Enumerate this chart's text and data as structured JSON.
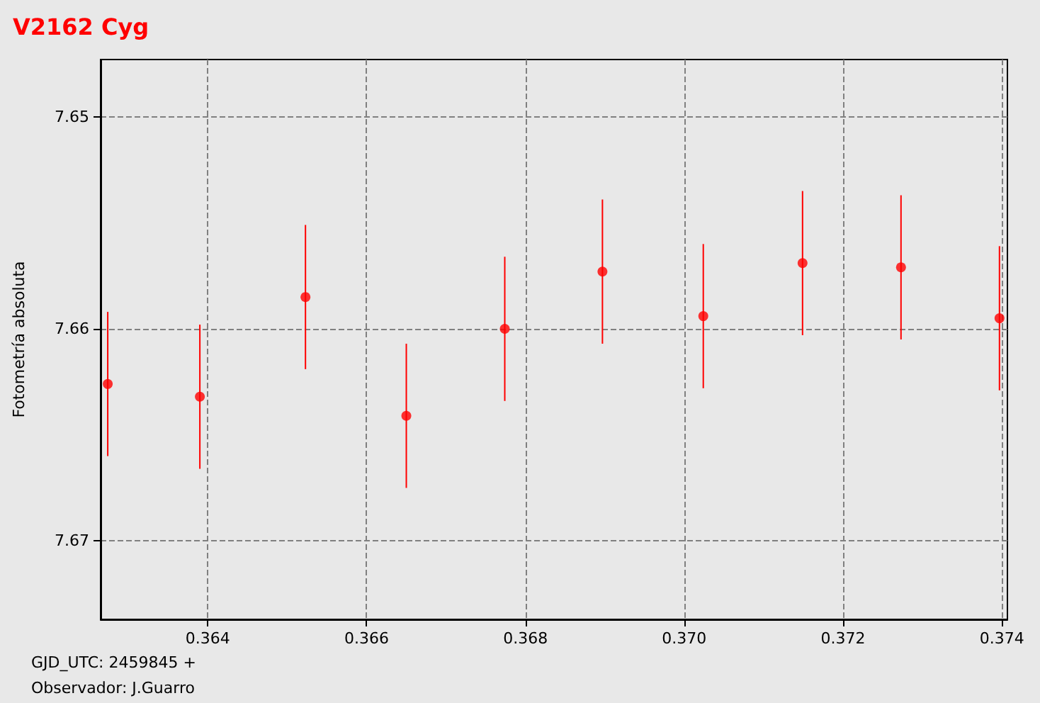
{
  "chart_data": {
    "type": "scatter",
    "title": "V2162 Cyg",
    "ylabel": "Fotometría absoluta",
    "annotations": [
      "GJD_UTC: 2459845 +",
      "Observador: J.Guarro"
    ],
    "x": [
      0.36274,
      0.3639,
      0.36523,
      0.3665,
      0.36774,
      0.36897,
      0.37024,
      0.37149,
      0.37273,
      0.37397
    ],
    "values": [
      7.6626,
      7.6632,
      7.6585,
      7.6641,
      7.66,
      7.6573,
      7.6594,
      7.6569,
      7.6571,
      7.6595
    ],
    "errors": [
      0.0034,
      0.0034,
      0.0034,
      0.0034,
      0.0034,
      0.0034,
      0.0034,
      0.0034,
      0.0034,
      0.0034
    ],
    "color": "#ff0000",
    "marker": "circle",
    "grid": true,
    "xlim": [
      0.36265,
      0.37407
    ],
    "ylim": [
      7.6737,
      7.6473
    ],
    "xticks": [
      0.364,
      0.366,
      0.368,
      {
        "value": 0.37,
        "label": "0.370"
      },
      0.372,
      0.374
    ],
    "yticks": [
      7.65,
      7.66,
      7.67
    ]
  }
}
